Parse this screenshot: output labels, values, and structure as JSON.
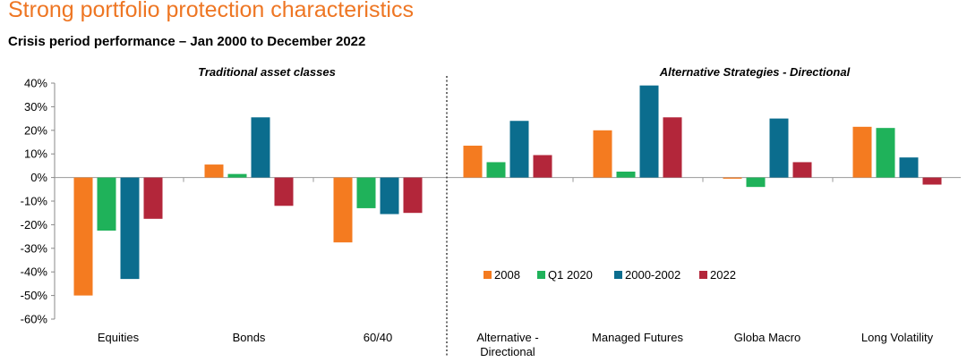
{
  "title": "Strong portfolio protection characteristics",
  "subtitle": "Crisis period performance – Jan 2000 to December 2022",
  "chart_data": {
    "type": "bar",
    "groups": [
      {
        "label": "Traditional asset classes",
        "categories": [
          "Equities",
          "Bonds",
          "60/40"
        ]
      },
      {
        "label": "Alternative Strategies - Directional",
        "categories": [
          "Alternative - Directional",
          "Managed Futures",
          "Globa Macro",
          "Long Volatility"
        ]
      }
    ],
    "categories": [
      "Equities",
      "Bonds",
      "60/40",
      "Alternative - Directional",
      "Managed Futures",
      "Globa Macro",
      "Long Volatility"
    ],
    "category_lines": [
      [
        "Equities"
      ],
      [
        "Bonds"
      ],
      [
        "60/40"
      ],
      [
        "Alternative -",
        "Directional"
      ],
      [
        "Managed Futures"
      ],
      [
        "Globa Macro"
      ],
      [
        "Long Volatility"
      ]
    ],
    "series": [
      {
        "name": "2008",
        "color": "#f47b20",
        "values": [
          -50,
          5.5,
          -27.5,
          13.5,
          20,
          -0.5,
          21.5
        ]
      },
      {
        "name": "Q1 2020",
        "color": "#1fb25a",
        "values": [
          -22.5,
          1.5,
          -13,
          6.5,
          2.5,
          -4,
          21
        ]
      },
      {
        "name": "2000-2002",
        "color": "#0b6d8e",
        "values": [
          -43,
          25.5,
          -15.5,
          24,
          39,
          25,
          8.5
        ]
      },
      {
        "name": "2022",
        "color": "#b3263a",
        "values": [
          -17.5,
          -12,
          -15,
          9.5,
          25.5,
          6.5,
          -3
        ]
      }
    ],
    "ylim": [
      -60,
      40
    ],
    "yticks": [
      -60,
      -50,
      -40,
      -30,
      -20,
      -10,
      0,
      10,
      20,
      30,
      40
    ],
    "ytick_labels": [
      "-60%",
      "-50%",
      "-40%",
      "-30%",
      "-20%",
      "-10%",
      "0%",
      "10%",
      "20%",
      "30%",
      "40%"
    ],
    "legend_position": "lower-center-right",
    "grid": false,
    "xlabel": "",
    "ylabel": ""
  }
}
